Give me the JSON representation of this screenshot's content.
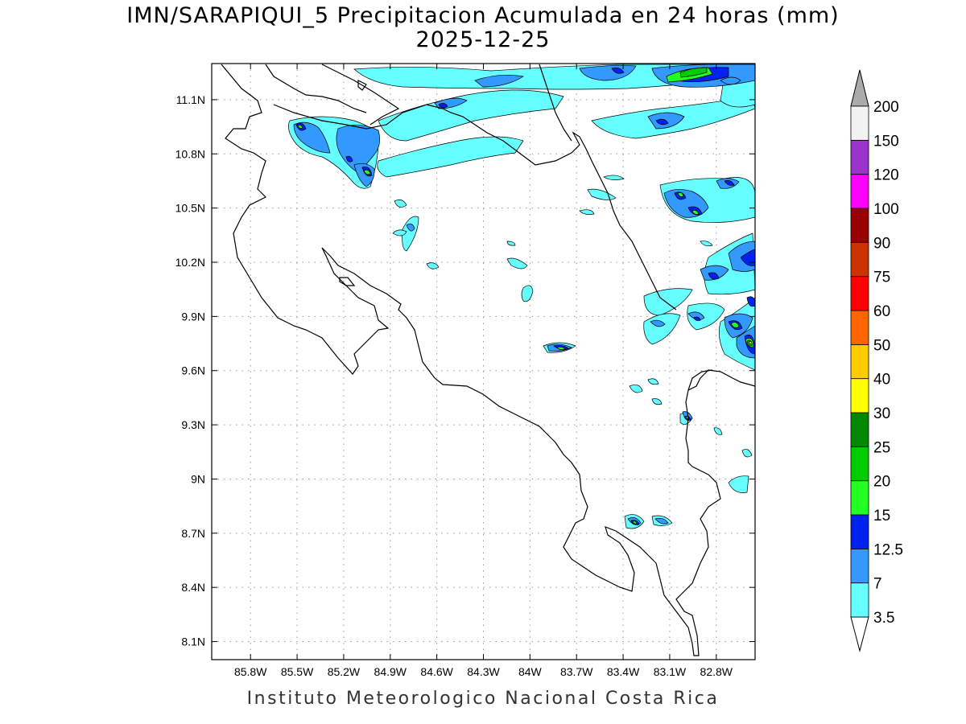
{
  "title": "IMN/SARAPIQUI_5 Precipitacion Acumulada en 24 horas (mm)",
  "subtitle": "2025-12-25",
  "footer": "Instituto Meteorologico Nacional Costa Rica",
  "map": {
    "lon_range": [
      -86.05,
      -82.55
    ],
    "lat_range": [
      8.0,
      11.3
    ],
    "x_ticks": [
      {
        "value": -85.8,
        "label": "85.8W"
      },
      {
        "value": -85.5,
        "label": "85.5W"
      },
      {
        "value": -85.2,
        "label": "85.2W"
      },
      {
        "value": -84.9,
        "label": "84.9W"
      },
      {
        "value": -84.6,
        "label": "84.6W"
      },
      {
        "value": -84.3,
        "label": "84.3W"
      },
      {
        "value": -84.0,
        "label": "84W"
      },
      {
        "value": -83.7,
        "label": "83.7W"
      },
      {
        "value": -83.4,
        "label": "83.4W"
      },
      {
        "value": -83.1,
        "label": "83.1W"
      },
      {
        "value": -82.8,
        "label": "82.8W"
      }
    ],
    "y_ticks": [
      {
        "value": 11.1,
        "label": "11.1N"
      },
      {
        "value": 10.8,
        "label": "10.8N"
      },
      {
        "value": 10.5,
        "label": "10.5N"
      },
      {
        "value": 10.2,
        "label": "10.2N"
      },
      {
        "value": 9.9,
        "label": "9.9N"
      },
      {
        "value": 9.6,
        "label": "9.6N"
      },
      {
        "value": 9.3,
        "label": "9.3N"
      },
      {
        "value": 9.0,
        "label": "9N"
      },
      {
        "value": 8.7,
        "label": "8.7N"
      },
      {
        "value": 8.4,
        "label": "8.4N"
      },
      {
        "value": 8.1,
        "label": "8.1N"
      }
    ],
    "grid": "dotted"
  },
  "colorbar": {
    "levels": [
      "3.5",
      "7",
      "12.5",
      "15",
      "20",
      "25",
      "30",
      "40",
      "50",
      "60",
      "75",
      "90",
      "100",
      "120",
      "150",
      "200"
    ],
    "colors": [
      "#66ffff",
      "#3399ff",
      "#0022ee",
      "#22ff22",
      "#00cc00",
      "#008800",
      "#ffff00",
      "#ffcc00",
      "#ff6600",
      "#ff0000",
      "#cc3300",
      "#990000",
      "#ff00ff",
      "#9933cc",
      "#f2f2f2"
    ],
    "arrow_top_color": "#aaaaaa",
    "arrow_bottom_color": "#ffffff"
  }
}
